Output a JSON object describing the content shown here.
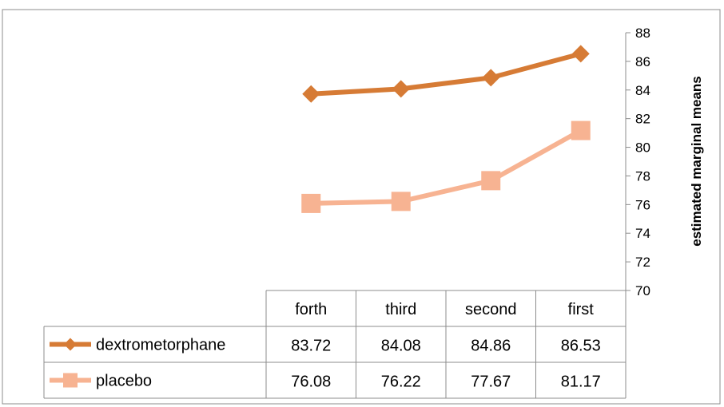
{
  "chart_data": {
    "type": "line",
    "title": "",
    "xlabel": "",
    "ylabel": "estimated marginal means",
    "categories": [
      "forth",
      "third",
      "second",
      "first"
    ],
    "ylim": [
      70,
      88
    ],
    "yticks": [
      "70",
      "72",
      "74",
      "76",
      "78",
      "80",
      "82",
      "84",
      "86",
      "88"
    ],
    "grid": false,
    "legend": "data-table-left",
    "series": [
      {
        "name": "dextrometorphane",
        "marker": "diamond",
        "color": "#d67b35",
        "values": [
          83.72,
          84.08,
          84.86,
          86.53
        ],
        "labels": [
          "83.72",
          "84.08",
          "84.86",
          "86.53"
        ]
      },
      {
        "name": "placebo",
        "marker": "square",
        "color": "#f7b392",
        "values": [
          76.08,
          76.22,
          77.67,
          81.17
        ],
        "labels": [
          "76.08",
          "76.22",
          "77.67",
          "81.17"
        ]
      }
    ]
  }
}
